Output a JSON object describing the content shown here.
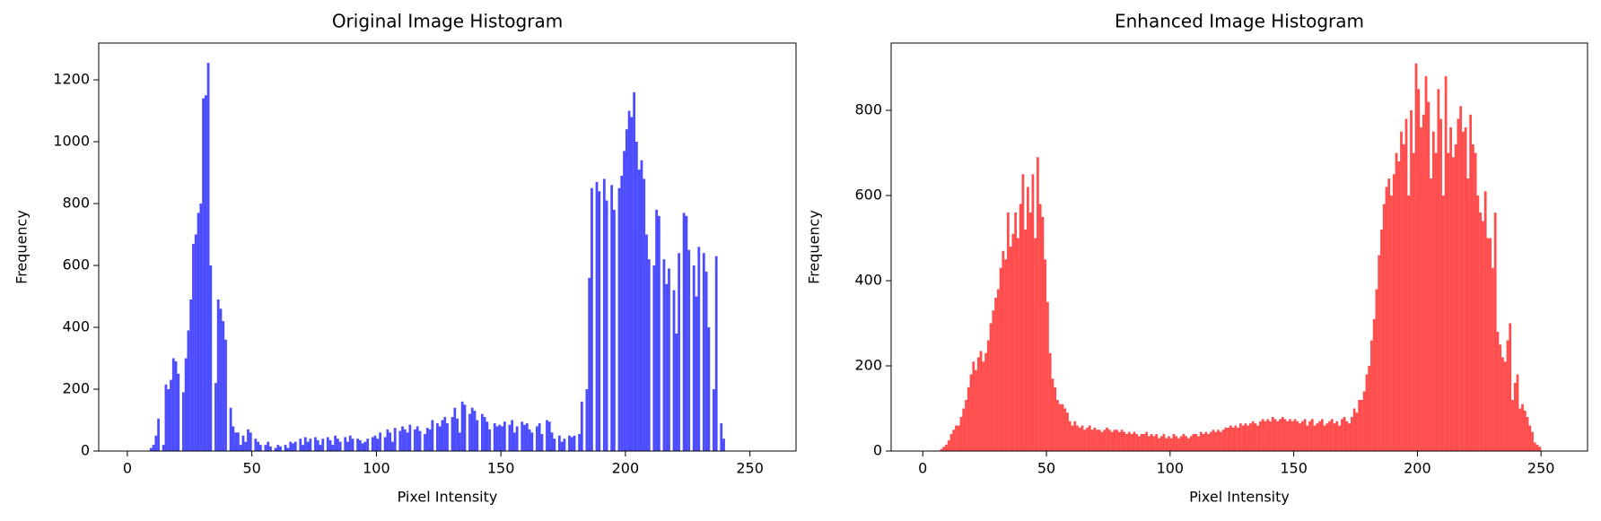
{
  "chart_data": [
    {
      "type": "histogram",
      "title": "Original Image Histogram",
      "x_label": "Pixel Intensity",
      "y_label": "Frequency",
      "color": "#0000ff",
      "alpha": 0.7,
      "bins": [
        0,
        1,
        2,
        3,
        4,
        5,
        6,
        7,
        8,
        9,
        10,
        11,
        12,
        13,
        14,
        15,
        16,
        17,
        18,
        19,
        20,
        21,
        22,
        23,
        24,
        25,
        26,
        27,
        28,
        29,
        30,
        31,
        32,
        33,
        34,
        35,
        36,
        37,
        38,
        39,
        40,
        41,
        42,
        43,
        44,
        45,
        46,
        47,
        48,
        49,
        50,
        51,
        52,
        53,
        54,
        55,
        56,
        57,
        58,
        59,
        60,
        61,
        62,
        63,
        64,
        65,
        66,
        67,
        68,
        69,
        70,
        71,
        72,
        73,
        74,
        75,
        76,
        77,
        78,
        79,
        80,
        81,
        82,
        83,
        84,
        85,
        86,
        87,
        88,
        89,
        90,
        91,
        92,
        93,
        94,
        95,
        96,
        97,
        98,
        99,
        100,
        101,
        102,
        103,
        104,
        105,
        106,
        107,
        108,
        109,
        110,
        111,
        112,
        113,
        114,
        115,
        116,
        117,
        118,
        119,
        120,
        121,
        122,
        123,
        124,
        125,
        126,
        127,
        128,
        129,
        130,
        131,
        132,
        133,
        134,
        135,
        136,
        137,
        138,
        139,
        140,
        141,
        142,
        143,
        144,
        145,
        146,
        147,
        148,
        149,
        150,
        151,
        152,
        153,
        154,
        155,
        156,
        157,
        158,
        159,
        160,
        161,
        162,
        163,
        164,
        165,
        166,
        167,
        168,
        169,
        170,
        171,
        172,
        173,
        174,
        175,
        176,
        177,
        178,
        179,
        180,
        181,
        182,
        183,
        184,
        185,
        186,
        187,
        188,
        189,
        190,
        191,
        192,
        193,
        194,
        195,
        196,
        197,
        198,
        199,
        200,
        201,
        202,
        203,
        204,
        205,
        206,
        207,
        208,
        209,
        210,
        211,
        212,
        213,
        214,
        215,
        216,
        217,
        218,
        219,
        220,
        221,
        222,
        223,
        224,
        225,
        226,
        227,
        228,
        229,
        230,
        231,
        232,
        233,
        234,
        235,
        236,
        237,
        238,
        239,
        240,
        241,
        242,
        243,
        244,
        245,
        246,
        247,
        248,
        249,
        250,
        251,
        252,
        253,
        254,
        255,
        256
      ],
      "values": [
        0,
        0,
        0,
        0,
        0,
        0,
        0,
        0,
        0,
        10,
        20,
        50,
        105,
        0,
        20,
        215,
        200,
        230,
        300,
        290,
        250,
        0,
        190,
        300,
        390,
        490,
        670,
        700,
        770,
        800,
        1140,
        1150,
        1255,
        600,
        0,
        220,
        490,
        460,
        420,
        360,
        0,
        140,
        80,
        60,
        60,
        20,
        50,
        30,
        70,
        60,
        0,
        40,
        30,
        20,
        0,
        20,
        30,
        15,
        0,
        10,
        20,
        15,
        0,
        20,
        10,
        30,
        25,
        30,
        0,
        40,
        20,
        45,
        30,
        40,
        0,
        45,
        35,
        20,
        40,
        0,
        45,
        35,
        20,
        50,
        40,
        30,
        0,
        45,
        30,
        50,
        40,
        0,
        40,
        35,
        25,
        30,
        40,
        0,
        45,
        50,
        40,
        60,
        0,
        45,
        70,
        60,
        30,
        75,
        0,
        65,
        80,
        70,
        60,
        85,
        0,
        70,
        80,
        65,
        0,
        55,
        75,
        70,
        100,
        0,
        90,
        80,
        100,
        110,
        90,
        0,
        110,
        140,
        105,
        60,
        160,
        150,
        0,
        120,
        140,
        130,
        100,
        0,
        120,
        110,
        95,
        70,
        0,
        90,
        80,
        85,
        80,
        95,
        0,
        85,
        100,
        60,
        80,
        0,
        95,
        85,
        90,
        70,
        60,
        0,
        80,
        90,
        55,
        0,
        100,
        95,
        60,
        40,
        0,
        50,
        30,
        40,
        0,
        50,
        45,
        50,
        0,
        55,
        160,
        0,
        200,
        560,
        850,
        0,
        870,
        840,
        0,
        880,
        810,
        0,
        860,
        780,
        0,
        850,
        890,
        970,
        1040,
        1100,
        1080,
        1160,
        1000,
        910,
        940,
        880,
        700,
        620,
        0,
        600,
        780,
        760,
        0,
        620,
        540,
        590,
        0,
        520,
        380,
        640,
        0,
        770,
        760,
        650,
        0,
        600,
        500,
        660,
        0,
        640,
        580,
        400,
        0,
        200,
        630,
        0,
        90,
        40,
        0,
        0,
        0,
        0,
        0,
        0,
        0,
        0,
        0,
        0,
        0,
        0,
        0,
        0,
        0,
        0
      ],
      "xlim": [
        -11.5,
        268.5
      ],
      "xticks": [
        0,
        50,
        100,
        150,
        200,
        250
      ],
      "ylim": [
        0,
        1319
      ],
      "yticks": [
        0,
        200,
        400,
        600,
        800,
        1000,
        1200
      ]
    },
    {
      "type": "histogram",
      "title": "Enhanced Image Histogram",
      "x_label": "Pixel Intensity",
      "y_label": "Frequency",
      "color": "#ff0000",
      "alpha": 0.7,
      "bins": [
        0,
        1,
        2,
        3,
        4,
        5,
        6,
        7,
        8,
        9,
        10,
        11,
        12,
        13,
        14,
        15,
        16,
        17,
        18,
        19,
        20,
        21,
        22,
        23,
        24,
        25,
        26,
        27,
        28,
        29,
        30,
        31,
        32,
        33,
        34,
        35,
        36,
        37,
        38,
        39,
        40,
        41,
        42,
        43,
        44,
        45,
        46,
        47,
        48,
        49,
        50,
        51,
        52,
        53,
        54,
        55,
        56,
        57,
        58,
        59,
        60,
        61,
        62,
        63,
        64,
        65,
        66,
        67,
        68,
        69,
        70,
        71,
        72,
        73,
        74,
        75,
        76,
        77,
        78,
        79,
        80,
        81,
        82,
        83,
        84,
        85,
        86,
        87,
        88,
        89,
        90,
        91,
        92,
        93,
        94,
        95,
        96,
        97,
        98,
        99,
        100,
        101,
        102,
        103,
        104,
        105,
        106,
        107,
        108,
        109,
        110,
        111,
        112,
        113,
        114,
        115,
        116,
        117,
        118,
        119,
        120,
        121,
        122,
        123,
        124,
        125,
        126,
        127,
        128,
        129,
        130,
        131,
        132,
        133,
        134,
        135,
        136,
        137,
        138,
        139,
        140,
        141,
        142,
        143,
        144,
        145,
        146,
        147,
        148,
        149,
        150,
        151,
        152,
        153,
        154,
        155,
        156,
        157,
        158,
        159,
        160,
        161,
        162,
        163,
        164,
        165,
        166,
        167,
        168,
        169,
        170,
        171,
        172,
        173,
        174,
        175,
        176,
        177,
        178,
        179,
        180,
        181,
        182,
        183,
        184,
        185,
        186,
        187,
        188,
        189,
        190,
        191,
        192,
        193,
        194,
        195,
        196,
        197,
        198,
        199,
        200,
        201,
        202,
        203,
        204,
        205,
        206,
        207,
        208,
        209,
        210,
        211,
        212,
        213,
        214,
        215,
        216,
        217,
        218,
        219,
        220,
        221,
        222,
        223,
        224,
        225,
        226,
        227,
        228,
        229,
        230,
        231,
        232,
        233,
        234,
        235,
        236,
        237,
        238,
        239,
        240,
        241,
        242,
        243,
        244,
        245,
        246,
        247,
        248,
        249,
        250,
        251,
        252,
        253,
        254,
        255,
        256
      ],
      "values": [
        0,
        0,
        0,
        0,
        0,
        0,
        0,
        5,
        10,
        15,
        25,
        40,
        50,
        60,
        60,
        80,
        100,
        120,
        150,
        180,
        210,
        190,
        220,
        235,
        210,
        230,
        260,
        300,
        330,
        360,
        380,
        430,
        470,
        450,
        560,
        480,
        510,
        560,
        500,
        580,
        650,
        520,
        620,
        560,
        650,
        500,
        690,
        580,
        550,
        450,
        350,
        230,
        170,
        150,
        120,
        110,
        110,
        100,
        90,
        70,
        60,
        70,
        60,
        55,
        60,
        50,
        55,
        60,
        50,
        55,
        50,
        50,
        45,
        50,
        55,
        50,
        45,
        50,
        50,
        45,
        50,
        45,
        40,
        45,
        40,
        45,
        40,
        35,
        40,
        40,
        45,
        35,
        40,
        35,
        40,
        30,
        35,
        40,
        30,
        35,
        30,
        40,
        35,
        30,
        35,
        40,
        35,
        30,
        35,
        40,
        40,
        35,
        45,
        40,
        45,
        40,
        45,
        50,
        45,
        50,
        45,
        50,
        55,
        55,
        60,
        55,
        60,
        55,
        65,
        60,
        65,
        60,
        65,
        70,
        65,
        60,
        70,
        75,
        70,
        75,
        70,
        80,
        75,
        70,
        75,
        80,
        75,
        70,
        75,
        70,
        75,
        70,
        65,
        70,
        75,
        60,
        70,
        75,
        60,
        65,
        70,
        75,
        60,
        65,
        70,
        75,
        65,
        70,
        60,
        75,
        80,
        70,
        65,
        80,
        100,
        90,
        120,
        120,
        140,
        180,
        200,
        260,
        310,
        380,
        460,
        520,
        580,
        620,
        640,
        600,
        650,
        700,
        680,
        750,
        720,
        780,
        600,
        800,
        700,
        910,
        850,
        760,
        790,
        880,
        820,
        640,
        750,
        700,
        850,
        780,
        600,
        880,
        700,
        760,
        690,
        720,
        780,
        810,
        750,
        760,
        640,
        790,
        720,
        700,
        600,
        560,
        540,
        610,
        500,
        500,
        430,
        560,
        280,
        250,
        220,
        210,
        260,
        300,
        120,
        160,
        180,
        100,
        110,
        95,
        80,
        60,
        45,
        20,
        15,
        10,
        0,
        0,
        0,
        0,
        0,
        0
      ],
      "xlim": [
        -12.8,
        268.8
      ],
      "xticks": [
        0,
        50,
        100,
        150,
        200,
        250
      ],
      "ylim": [
        0,
        958
      ],
      "yticks": [
        0,
        200,
        400,
        600,
        800
      ]
    }
  ]
}
